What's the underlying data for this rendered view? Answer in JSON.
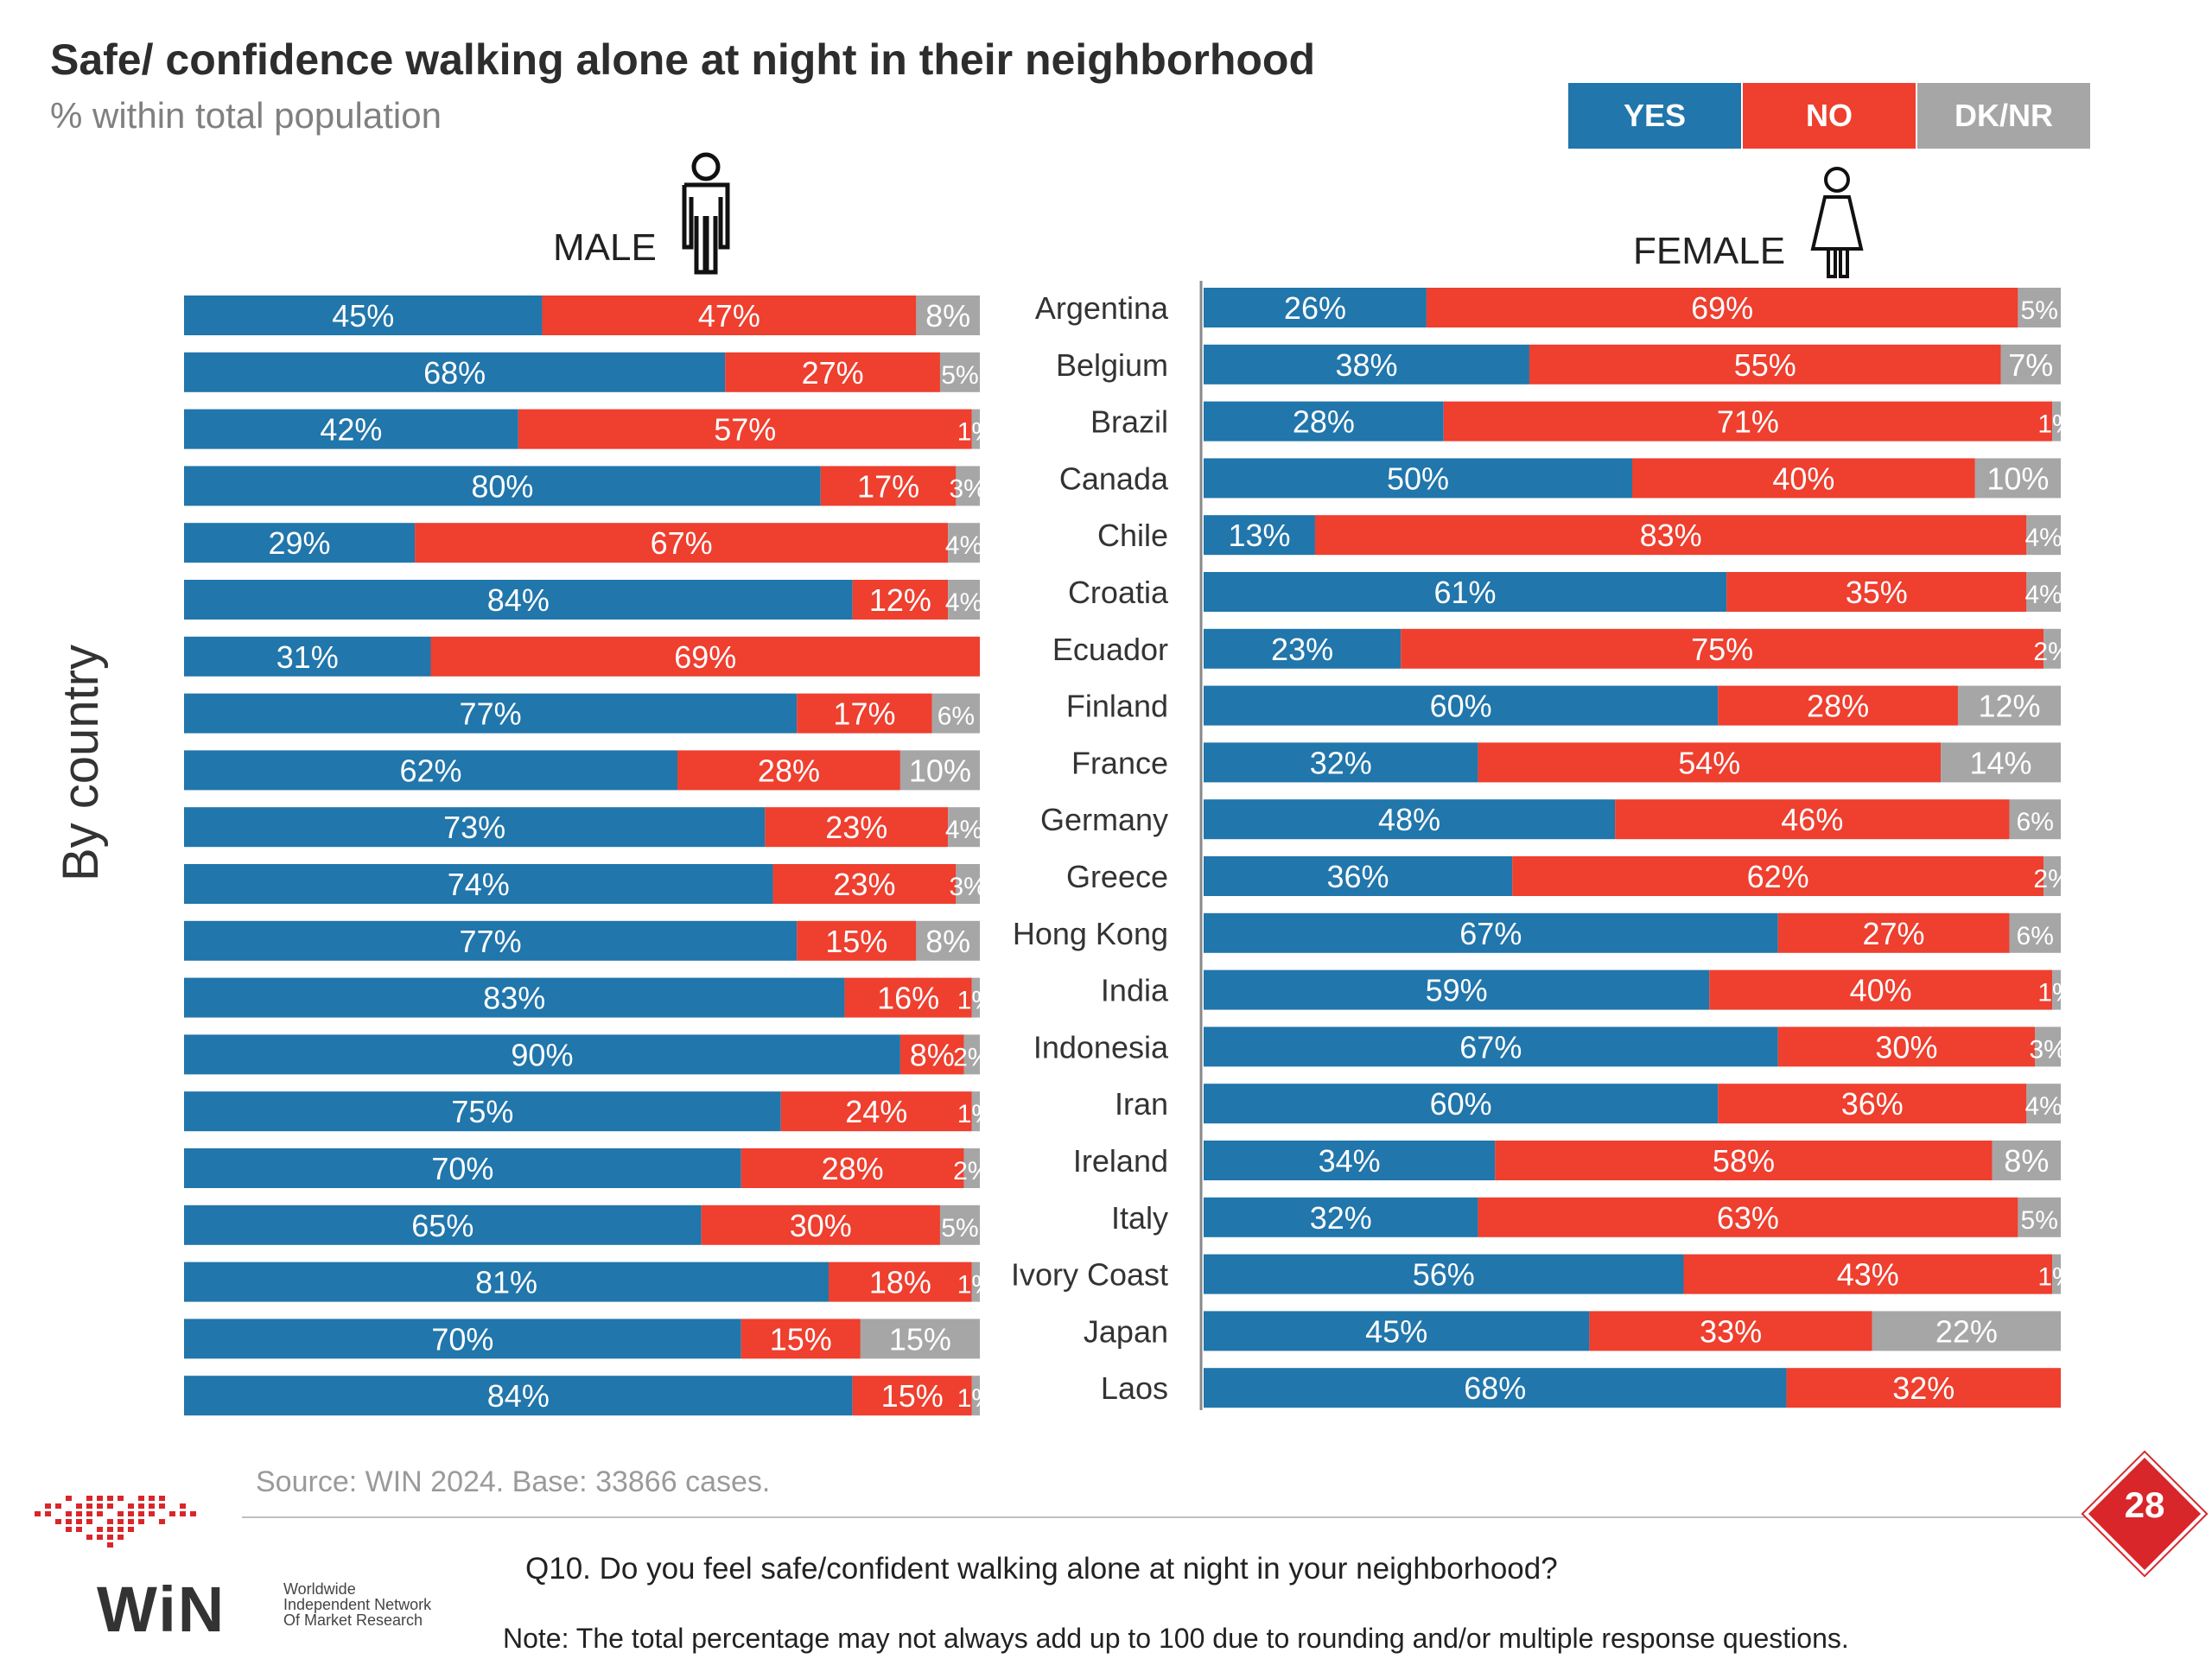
{
  "header": {
    "title": "Safe/ confidence walking alone at night in their neighborhood",
    "subtitle": "% within total population"
  },
  "legend": [
    {
      "label": "YES",
      "color": "#2176ab"
    },
    {
      "label": "NO",
      "color": "#ee3f2f"
    },
    {
      "label": "DK/NR",
      "color": "#a6a6a6"
    }
  ],
  "panels": {
    "male_label": "MALE",
    "female_label": "FEMALE",
    "axis_label": "By country",
    "male_icon": "male-person-icon",
    "female_icon": "female-person-icon"
  },
  "chart_data": [
    {
      "type": "bar",
      "orientation": "horizontal",
      "stacked": true,
      "panel": "MALE",
      "categories": [
        "Argentina",
        "Belgium",
        "Brazil",
        "Canada",
        "Chile",
        "Croatia",
        "Ecuador",
        "Finland",
        "France",
        "Germany",
        "Greece",
        "Hong Kong",
        "India",
        "Indonesia",
        "Iran",
        "Ireland",
        "Italy",
        "Ivory Coast",
        "Japan",
        "Laos"
      ],
      "series": [
        {
          "name": "YES",
          "values": [
            45,
            68,
            42,
            80,
            29,
            84,
            31,
            77,
            62,
            73,
            74,
            77,
            83,
            90,
            75,
            70,
            65,
            81,
            70,
            84
          ]
        },
        {
          "name": "NO",
          "values": [
            47,
            27,
            57,
            17,
            67,
            12,
            69,
            17,
            28,
            23,
            23,
            15,
            16,
            8,
            24,
            28,
            30,
            18,
            15,
            15
          ]
        },
        {
          "name": "DK/NR",
          "values": [
            8,
            5,
            1,
            3,
            4,
            4,
            0,
            6,
            10,
            4,
            3,
            8,
            1,
            2,
            1,
            2,
            5,
            1,
            15,
            1
          ]
        }
      ],
      "xlim": [
        0,
        100
      ]
    },
    {
      "type": "bar",
      "orientation": "horizontal",
      "stacked": true,
      "panel": "FEMALE",
      "categories": [
        "Argentina",
        "Belgium",
        "Brazil",
        "Canada",
        "Chile",
        "Croatia",
        "Ecuador",
        "Finland",
        "France",
        "Germany",
        "Greece",
        "Hong Kong",
        "India",
        "Indonesia",
        "Iran",
        "Ireland",
        "Italy",
        "Ivory Coast",
        "Japan",
        "Laos"
      ],
      "series": [
        {
          "name": "YES",
          "values": [
            26,
            38,
            28,
            50,
            13,
            61,
            23,
            60,
            32,
            48,
            36,
            67,
            59,
            67,
            60,
            34,
            32,
            56,
            45,
            68
          ]
        },
        {
          "name": "NO",
          "values": [
            69,
            55,
            71,
            40,
            83,
            35,
            75,
            28,
            54,
            46,
            62,
            27,
            40,
            30,
            36,
            58,
            63,
            43,
            33,
            32
          ]
        },
        {
          "name": "DK/NR",
          "values": [
            5,
            7,
            1,
            10,
            4,
            4,
            2,
            12,
            14,
            6,
            2,
            6,
            1,
            3,
            4,
            8,
            5,
            1,
            22,
            0
          ]
        }
      ],
      "xlim": [
        0,
        100
      ]
    }
  ],
  "footer": {
    "source": "Source: WIN 2024. Base: 33866 cases.",
    "question": "Q10. Do you feel safe/confident walking alone at night in your neighborhood?",
    "note": "Note: The total percentage may not always add up to 100 due to rounding and/or multiple response questions.",
    "page_number": "28",
    "logo_text": "WiN",
    "logo_sub": [
      "Worldwide",
      "Independent Network",
      "Of Market Research"
    ]
  }
}
